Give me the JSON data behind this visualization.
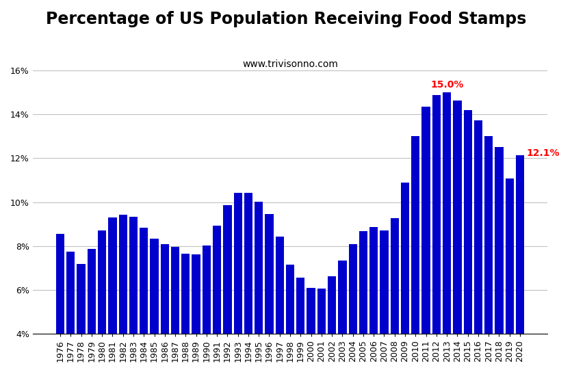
{
  "title": "Percentage of US Population Receiving Food Stamps",
  "subtitle": "www.trivisonno.com",
  "bar_color": "#0000CC",
  "background_color": "#FFFFFF",
  "years": [
    1976,
    1977,
    1978,
    1979,
    1980,
    1981,
    1982,
    1983,
    1984,
    1985,
    1986,
    1987,
    1988,
    1989,
    1990,
    1991,
    1992,
    1993,
    1994,
    1995,
    1996,
    1997,
    1998,
    1999,
    2000,
    2001,
    2002,
    2003,
    2004,
    2005,
    2006,
    2007,
    2008,
    2009,
    2010,
    2011,
    2012,
    2013,
    2014,
    2015,
    2016,
    2017,
    2018,
    2019,
    2020
  ],
  "values": [
    8.55,
    7.74,
    7.18,
    7.87,
    8.72,
    9.3,
    9.42,
    9.34,
    8.83,
    8.35,
    8.08,
    7.95,
    7.64,
    7.61,
    8.01,
    8.93,
    9.85,
    10.43,
    10.43,
    10.01,
    9.47,
    8.42,
    7.16,
    6.55,
    6.08,
    6.07,
    6.63,
    7.35,
    8.1,
    8.68,
    8.88,
    8.7,
    9.27,
    10.88,
    13.01,
    14.34,
    14.87,
    15.01,
    14.63,
    14.21,
    13.72,
    13.01,
    12.5,
    11.09,
    12.13
  ],
  "ylim": [
    4,
    16
  ],
  "yticks": [
    4,
    6,
    8,
    10,
    12,
    14,
    16
  ],
  "ytick_labels": [
    "4%",
    "6%",
    "8%",
    "10%",
    "12%",
    "14%",
    "16%"
  ],
  "annotation_max_year": 2013,
  "annotation_max_value": 15.01,
  "annotation_max_text": "15.0%",
  "annotation_last_year": 2020,
  "annotation_last_value": 12.13,
  "annotation_last_text": "12.1%",
  "annotation_color": "#FF0000",
  "title_fontsize": 17,
  "subtitle_fontsize": 10,
  "tick_fontsize": 9,
  "grid_color": "#C0C0C0",
  "grid_linewidth": 0.8
}
